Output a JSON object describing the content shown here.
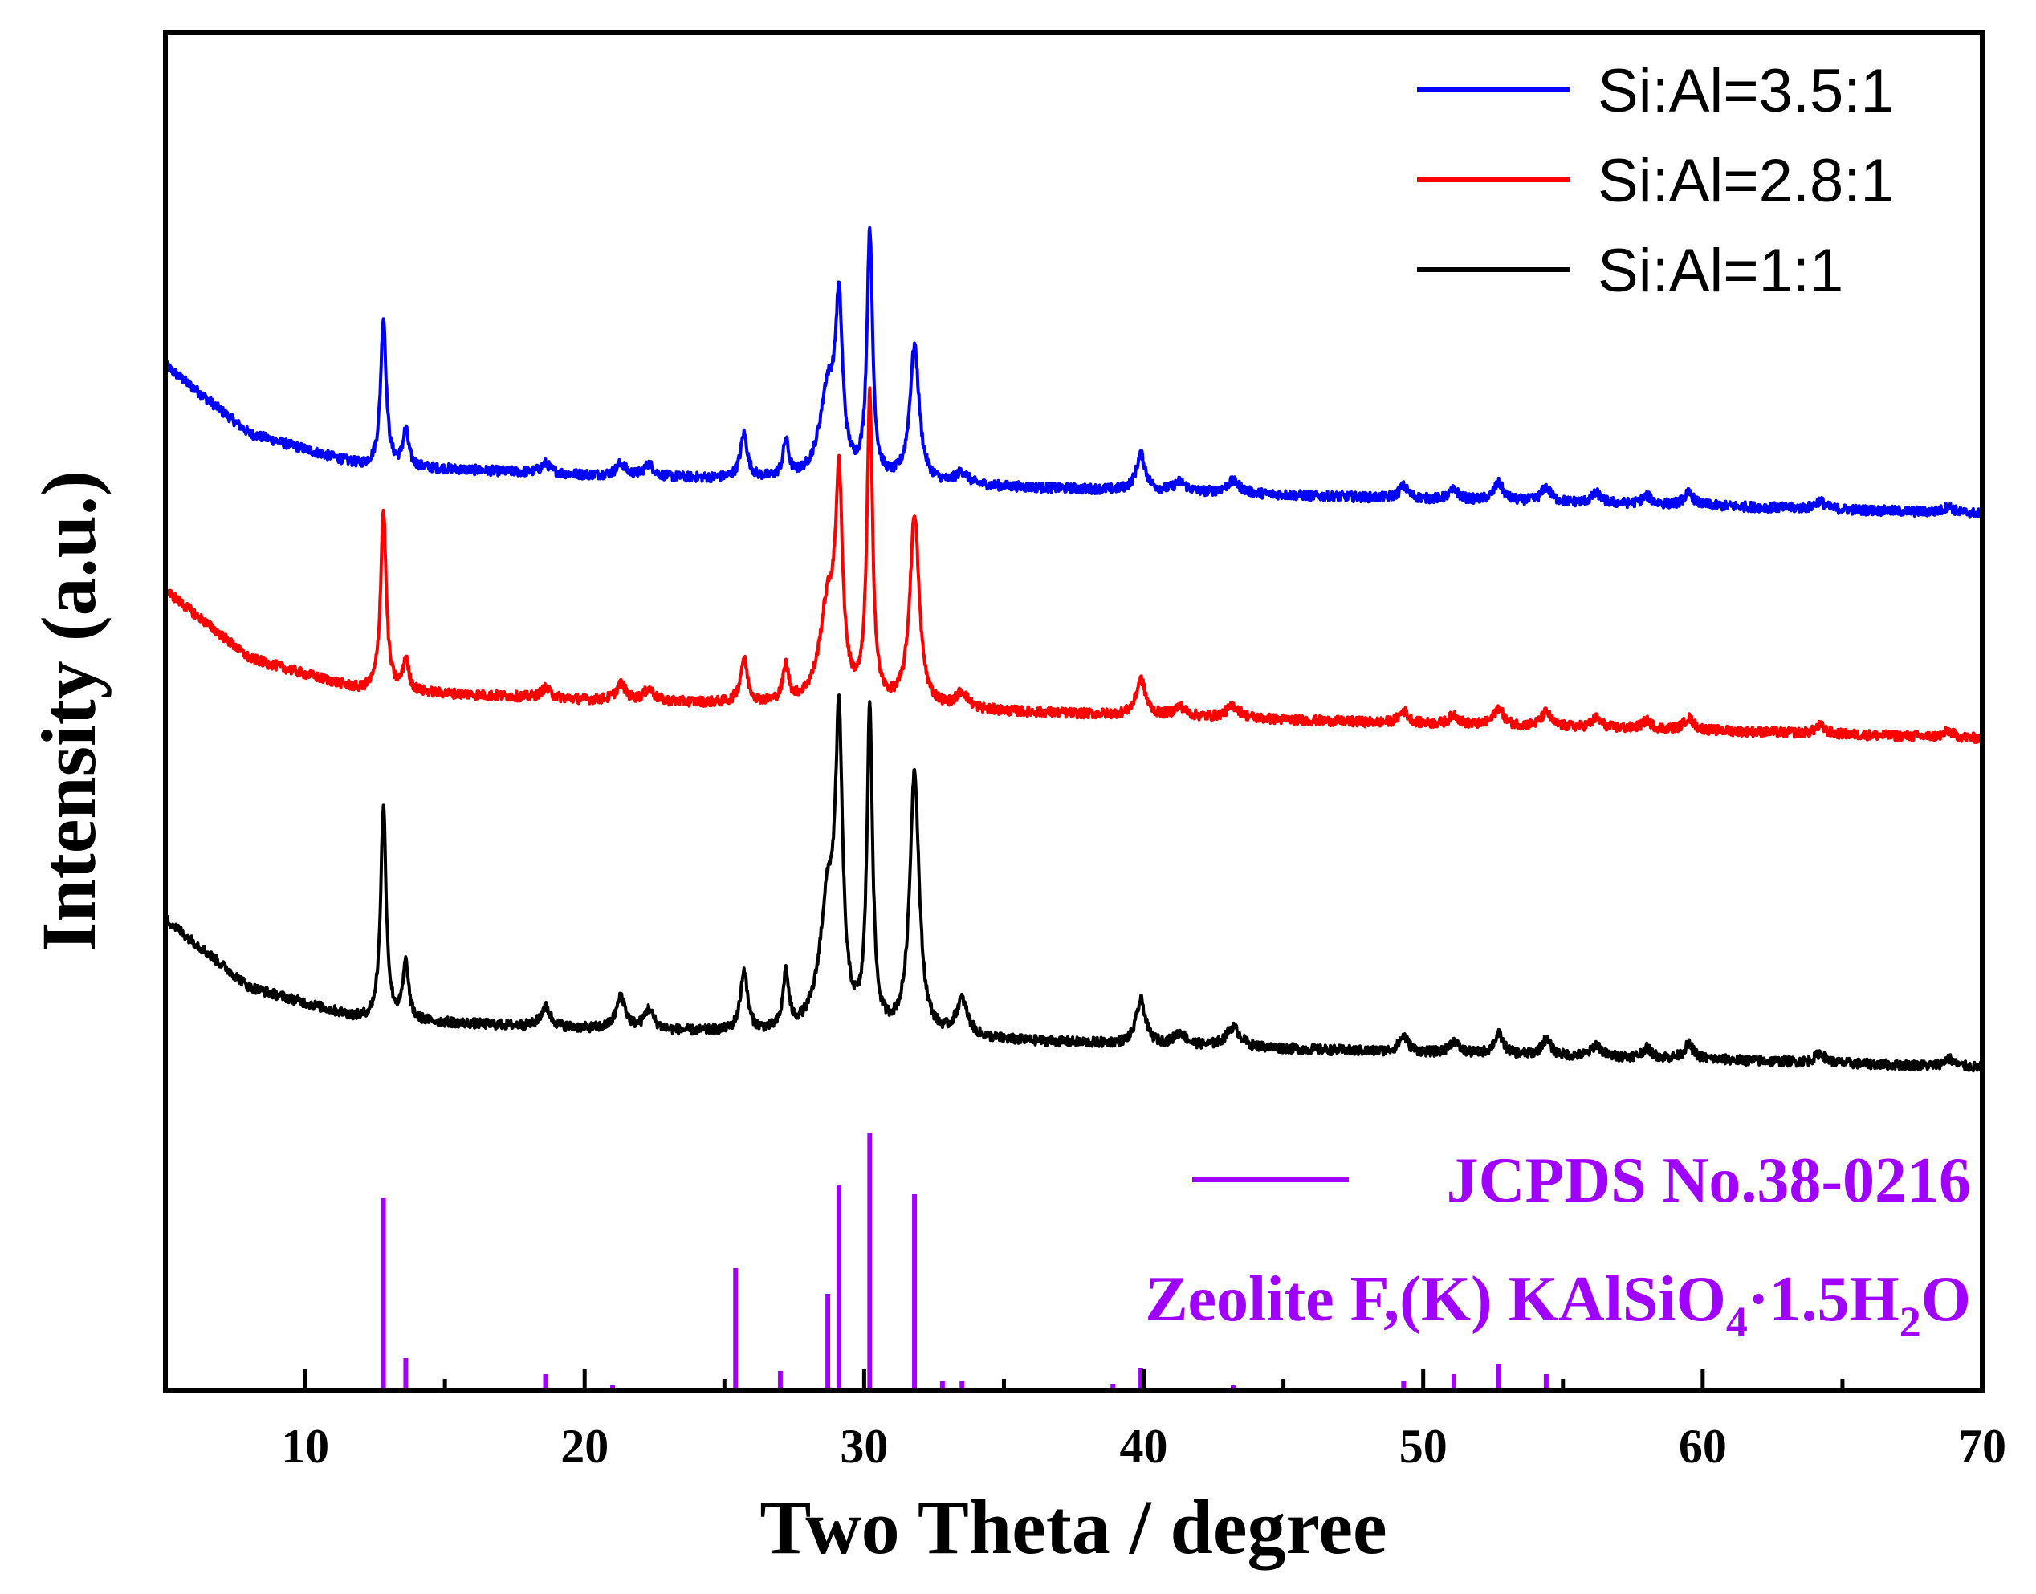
{
  "chart_data": {
    "type": "line",
    "title": "",
    "xlabel": "Two Theta / degree",
    "ylabel": "Intensity (a.u.)",
    "xlim": [
      5,
      70
    ],
    "xticks": [
      10,
      20,
      30,
      40,
      50,
      60,
      70
    ],
    "x_minor_step": 5,
    "y_units": "arbitrary (stacked patterns, offset)",
    "series": [
      {
        "name": "Si:Al=3.5:1",
        "color": "#0000ff",
        "offset": 690,
        "baseline": [
          [
            5,
            185
          ],
          [
            8,
            100
          ],
          [
            12,
            60
          ],
          [
            20,
            48
          ],
          [
            30,
            38
          ],
          [
            40,
            28
          ],
          [
            50,
            18
          ],
          [
            60,
            10
          ],
          [
            70,
            0
          ]
        ],
        "peaks": [
          [
            12.8,
            185,
            0.12
          ],
          [
            13.6,
            45,
            0.12
          ],
          [
            18.6,
            12,
            0.2
          ],
          [
            21.3,
            15,
            0.2
          ],
          [
            22.3,
            15,
            0.2
          ],
          [
            25.7,
            55,
            0.15
          ],
          [
            27.2,
            45,
            0.12
          ],
          [
            28.7,
            110,
            0.35
          ],
          [
            29.1,
            195,
            0.15
          ],
          [
            30.2,
            310,
            0.12
          ],
          [
            31.8,
            170,
            0.2
          ],
          [
            33.5,
            15,
            0.25
          ],
          [
            39.9,
            45,
            0.2
          ],
          [
            41.3,
            12,
            0.25
          ],
          [
            43.2,
            15,
            0.3
          ],
          [
            49.3,
            15,
            0.2
          ],
          [
            51.1,
            12,
            0.2
          ],
          [
            52.7,
            22,
            0.2
          ],
          [
            54.4,
            18,
            0.2
          ],
          [
            56.2,
            12,
            0.2
          ],
          [
            58.0,
            10,
            0.2
          ],
          [
            59.5,
            15,
            0.2
          ],
          [
            64.2,
            10,
            0.2
          ],
          [
            68.8,
            8,
            0.2
          ]
        ]
      },
      {
        "name": "Si:Al=2.8:1",
        "color": "#ff0000",
        "offset": 410,
        "baseline": [
          [
            5,
            185
          ],
          [
            8,
            100
          ],
          [
            12,
            60
          ],
          [
            20,
            48
          ],
          [
            30,
            38
          ],
          [
            40,
            28
          ],
          [
            50,
            18
          ],
          [
            60,
            10
          ],
          [
            70,
            0
          ]
        ],
        "peaks": [
          [
            12.8,
            225,
            0.12
          ],
          [
            13.6,
            40,
            0.12
          ],
          [
            18.6,
            12,
            0.2
          ],
          [
            21.3,
            20,
            0.2
          ],
          [
            22.3,
            15,
            0.2
          ],
          [
            25.7,
            55,
            0.15
          ],
          [
            27.2,
            45,
            0.12
          ],
          [
            28.7,
            120,
            0.35
          ],
          [
            29.1,
            250,
            0.15
          ],
          [
            30.2,
            380,
            0.12
          ],
          [
            31.8,
            240,
            0.2
          ],
          [
            33.5,
            20,
            0.25
          ],
          [
            39.9,
            45,
            0.2
          ],
          [
            41.3,
            12,
            0.25
          ],
          [
            43.2,
            15,
            0.3
          ],
          [
            49.3,
            15,
            0.2
          ],
          [
            51.1,
            12,
            0.2
          ],
          [
            52.7,
            22,
            0.2
          ],
          [
            54.4,
            18,
            0.2
          ],
          [
            56.2,
            12,
            0.2
          ],
          [
            58.0,
            10,
            0.2
          ],
          [
            59.5,
            15,
            0.2
          ],
          [
            64.2,
            10,
            0.2
          ],
          [
            68.8,
            8,
            0.2
          ]
        ]
      },
      {
        "name": "Si:Al=1:1",
        "color": "#000000",
        "offset": 0,
        "baseline": [
          [
            5,
            185
          ],
          [
            8,
            100
          ],
          [
            12,
            60
          ],
          [
            20,
            48
          ],
          [
            30,
            38
          ],
          [
            40,
            28
          ],
          [
            50,
            18
          ],
          [
            60,
            10
          ],
          [
            70,
            0
          ]
        ],
        "peaks": [
          [
            12.8,
            265,
            0.12
          ],
          [
            13.6,
            70,
            0.12
          ],
          [
            18.6,
            25,
            0.2
          ],
          [
            21.3,
            40,
            0.2
          ],
          [
            22.3,
            25,
            0.2
          ],
          [
            25.7,
            75,
            0.15
          ],
          [
            27.2,
            70,
            0.12
          ],
          [
            28.7,
            160,
            0.35
          ],
          [
            29.1,
            345,
            0.15
          ],
          [
            30.2,
            400,
            0.12
          ],
          [
            31.8,
            330,
            0.2
          ],
          [
            33.5,
            45,
            0.25
          ],
          [
            39.9,
            55,
            0.2
          ],
          [
            41.3,
            15,
            0.25
          ],
          [
            43.2,
            25,
            0.3
          ],
          [
            49.3,
            20,
            0.2
          ],
          [
            51.1,
            15,
            0.2
          ],
          [
            52.7,
            25,
            0.2
          ],
          [
            54.4,
            20,
            0.2
          ],
          [
            56.2,
            15,
            0.2
          ],
          [
            58.0,
            12,
            0.2
          ],
          [
            59.5,
            18,
            0.2
          ],
          [
            64.2,
            12,
            0.2
          ],
          [
            68.8,
            10,
            0.2
          ]
        ]
      }
    ],
    "reference": {
      "name": "JCPDS No.38-0216",
      "compound_prefix": "Zeolite F,(K) KAlSiO",
      "compound_sub1": "4",
      "compound_mid": "·1.5H",
      "compound_sub2": "2",
      "compound_suffix": "O",
      "color": "#a000ff",
      "sticks": [
        [
          12.8,
          60
        ],
        [
          13.6,
          10
        ],
        [
          18.6,
          5
        ],
        [
          21.0,
          1
        ],
        [
          25.4,
          38
        ],
        [
          27.0,
          6
        ],
        [
          28.7,
          30
        ],
        [
          29.1,
          64
        ],
        [
          30.2,
          80
        ],
        [
          31.8,
          61
        ],
        [
          32.8,
          3
        ],
        [
          33.5,
          3
        ],
        [
          38.9,
          2
        ],
        [
          39.9,
          7
        ],
        [
          43.2,
          1
        ],
        [
          49.3,
          3
        ],
        [
          51.1,
          5
        ],
        [
          52.7,
          8
        ],
        [
          54.4,
          5
        ]
      ]
    }
  }
}
